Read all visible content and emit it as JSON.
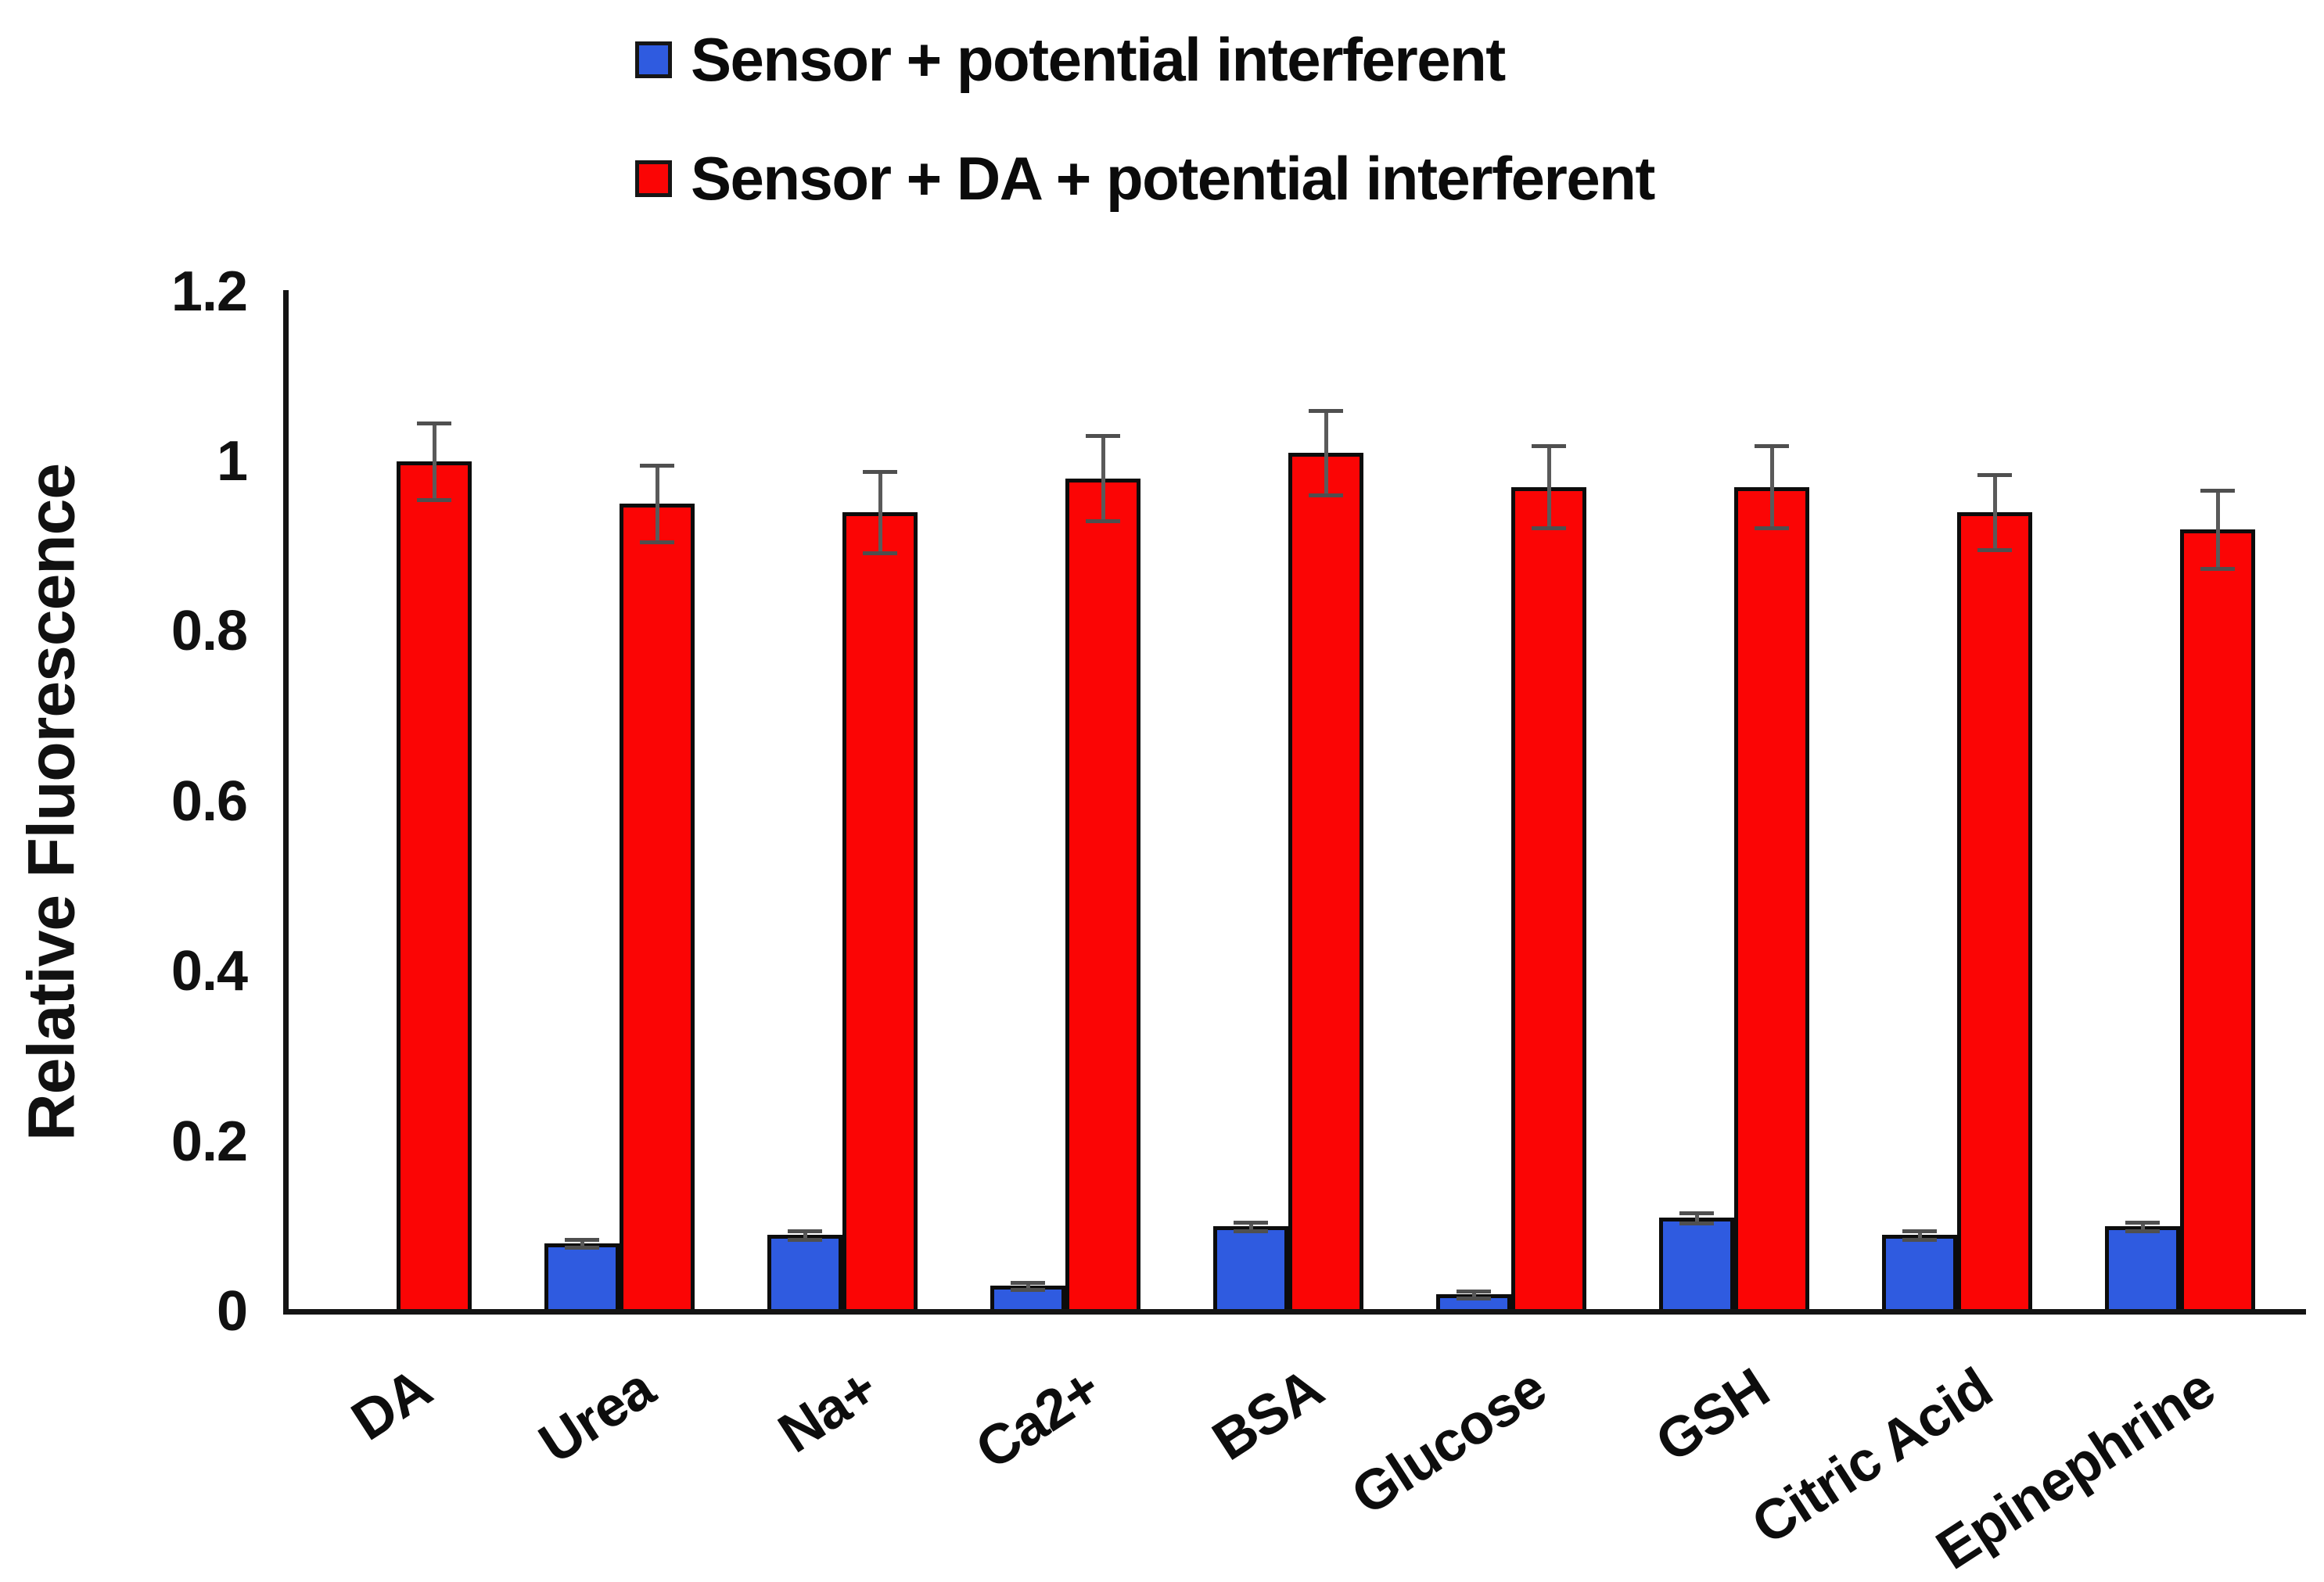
{
  "legend": {
    "items": [
      {
        "label": "Sensor + potential interferent",
        "color": "#2F5BE0"
      },
      {
        "label": "Sensor + DA + potential interferent",
        "color": "#FB0505"
      }
    ]
  },
  "y_axis": {
    "title": "Relative Fluorescence"
  },
  "chart_data": {
    "type": "bar",
    "title": "",
    "xlabel": "",
    "ylabel": "Relative Fluorescence",
    "categories": [
      "DA",
      "Urea",
      "Na+",
      "Ca2+",
      "BSA",
      "Glucose",
      "GSH",
      "Citric Acid",
      "Epinephrine"
    ],
    "series": [
      {
        "name": "Sensor + potential interferent",
        "color": "#2F5BE0",
        "values": [
          0,
          0.08,
          0.09,
          0.03,
          0.1,
          0.02,
          0.11,
          0.09,
          0.1
        ],
        "errors": [
          0,
          0.005,
          0.005,
          0.004,
          0.005,
          0.004,
          0.006,
          0.005,
          0.005
        ]
      },
      {
        "name": "Sensor + DA + potential interferent",
        "color": "#FB0505",
        "values": [
          1.0,
          0.95,
          0.94,
          0.98,
          1.01,
          0.97,
          0.97,
          0.94,
          0.92
        ],
        "errors": [
          0.045,
          0.045,
          0.048,
          0.05,
          0.05,
          0.048,
          0.048,
          0.044,
          0.046
        ]
      }
    ],
    "ylim": [
      0,
      1.2
    ],
    "yticks": [
      0,
      0.2,
      0.4,
      0.6,
      0.8,
      1,
      1.2
    ],
    "ytick_labels": [
      "0",
      "0.2",
      "0.4",
      "0.6",
      "0.8",
      "1",
      "1.2"
    ],
    "grid": false,
    "legend_position": "top",
    "bar_outline_color": "#0c0c0c",
    "error_bar_color": "#5a5a5a",
    "error_cap_color": "#4f4f4f"
  }
}
